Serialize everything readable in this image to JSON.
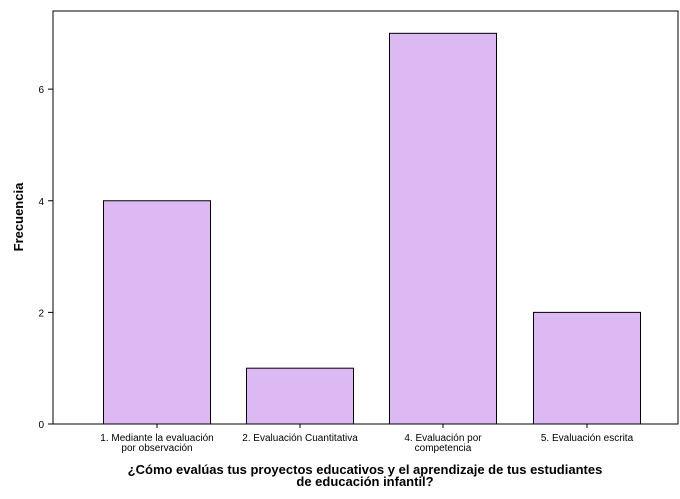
{
  "chart_data": {
    "type": "bar",
    "categories": [
      [
        "1. Mediante la evaluación",
        "por observación"
      ],
      [
        "2. Evaluación Cuantitativa"
      ],
      [
        "4. Evaluación por",
        "competencia"
      ],
      [
        "5. Evaluación escrita"
      ]
    ],
    "values": [
      4,
      1,
      7,
      2
    ],
    "ylabel": "Frecuencia",
    "xlabel": [
      "¿Cómo evalúas tus proyectos educativos y el aprendizaje de tus estudiantes",
      "de educación infantil?"
    ],
    "ylim": [
      0,
      7.4
    ],
    "yticks": [
      0,
      2,
      4,
      6
    ],
    "grid": false,
    "bar_color": "#dcb9f2",
    "bar_edge_color": "#000000"
  }
}
